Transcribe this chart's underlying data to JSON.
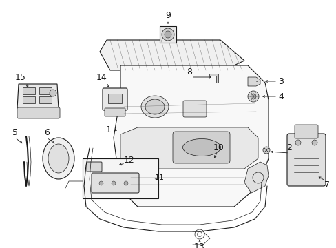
{
  "background_color": "#ffffff",
  "line_color": "#1a1a1a",
  "fig_width": 4.89,
  "fig_height": 3.6,
  "dpi": 100,
  "label_fontsize": 9,
  "small_fontsize": 7
}
